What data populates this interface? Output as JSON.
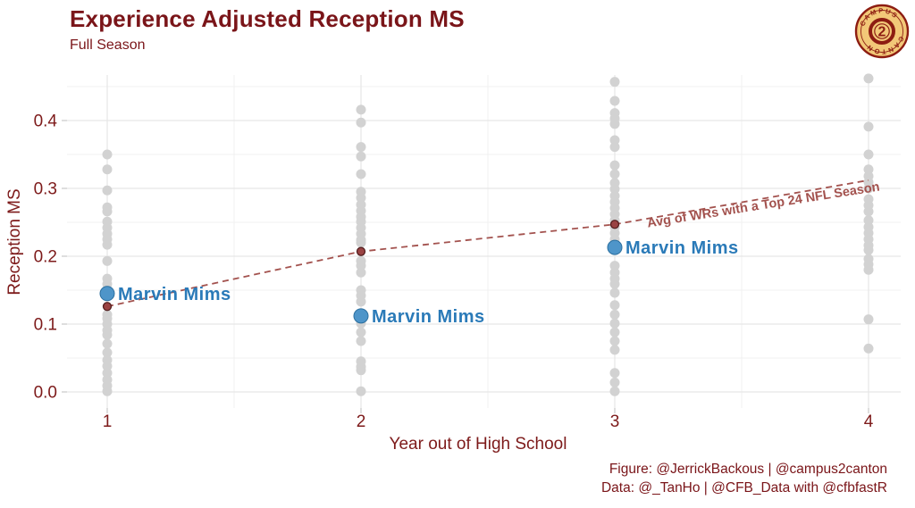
{
  "title": "Experience Adjusted Reception MS",
  "subtitle": "Full Season",
  "footer": {
    "line1": "Figure: @JerrickBackous | @campus2canton",
    "line2": "Data: @_TanHo | @CFB_Data with @cfbfastR"
  },
  "logo": {
    "top_arc_text": "CAMPUS",
    "bottom_arc_text": "CANTON",
    "center_digit": "2",
    "gold": "#F2C878",
    "maroon": "#8D1D12"
  },
  "colors": {
    "maroon_text": "#7A1519",
    "axis_label": "#7D1A1A",
    "gray_dot": "#D2D2D2",
    "blue_dot_fill": "#4E95C9",
    "blue_dot_stroke": "#2B6F9F",
    "blue_label": "#2A7AB8",
    "red_dot_fill": "#9A4343",
    "red_dot_stroke": "#542020",
    "trend_line": "#A3524E",
    "grid_major": "#E7E7E7",
    "grid_minor": "#F0F0F0",
    "tick": "#CBCBCB"
  },
  "chart_data": {
    "type": "scatter",
    "title": "Experience Adjusted Reception MS",
    "subtitle": "Full Season",
    "xlabel": "Year out of High School",
    "ylabel": "Reception MS",
    "xlim": [
      0.85,
      4.15
    ],
    "ylim": [
      -0.023,
      0.466
    ],
    "grid": "major and minor gridlines, light gray, no axis lines",
    "legend_position": "none",
    "x_ticks": [
      {
        "label": "1",
        "v": 1
      },
      {
        "label": "2",
        "v": 2
      },
      {
        "label": "3",
        "v": 3
      },
      {
        "label": "4",
        "v": 4
      }
    ],
    "y_ticks": [
      {
        "label": "0.0",
        "v": 0.0
      },
      {
        "label": "0.1",
        "v": 0.1
      },
      {
        "label": "0.2",
        "v": 0.2
      },
      {
        "label": "0.3",
        "v": 0.3
      },
      {
        "label": "0.4",
        "v": 0.4
      }
    ],
    "y_minor": [
      0.05,
      0.15,
      0.25,
      0.35,
      0.45
    ],
    "x_minor": [
      1.5,
      2.5,
      3.5
    ],
    "series": [
      {
        "name": "all-wrs-strip",
        "type": "strip",
        "color": "#D2D2D2",
        "by_year": {
          "1": [
            0.35,
            0.328,
            0.297,
            0.272,
            0.266,
            0.251,
            0.242,
            0.233,
            0.225,
            0.217,
            0.193,
            0.167,
            0.159,
            0.114,
            0.108,
            0.1,
            0.091,
            0.084,
            0.071,
            0.058,
            0.047,
            0.038,
            0.028,
            0.018,
            0.009,
            0.001
          ],
          "2": [
            0.416,
            0.397,
            0.361,
            0.347,
            0.321,
            0.295,
            0.286,
            0.276,
            0.267,
            0.258,
            0.251,
            0.242,
            0.233,
            0.224,
            0.22,
            0.193,
            0.186,
            0.176,
            0.15,
            0.142,
            0.133,
            0.101,
            0.088,
            0.075,
            0.045,
            0.037,
            0.032,
            0.001
          ],
          "3": [
            0.457,
            0.429,
            0.411,
            0.403,
            0.395,
            0.371,
            0.361,
            0.334,
            0.321,
            0.308,
            0.299,
            0.289,
            0.28,
            0.271,
            0.262,
            0.253,
            0.243,
            0.234,
            0.225,
            0.186,
            0.176,
            0.167,
            0.159,
            0.146,
            0.128,
            0.114,
            0.101,
            0.088,
            0.075,
            0.062,
            0.028,
            0.014,
            0.001
          ],
          "4": [
            0.462,
            0.391,
            0.35,
            0.328,
            0.318,
            0.309,
            0.3,
            0.284,
            0.275,
            0.266,
            0.253,
            0.243,
            0.234,
            0.225,
            0.216,
            0.209,
            0.196,
            0.188,
            0.18,
            0.107,
            0.064
          ]
        }
      },
      {
        "name": "marvin-mims",
        "type": "labeled-points",
        "label": "Marvin Mims",
        "color": "#4E95C9",
        "points": [
          {
            "x": 1,
            "y": 0.145
          },
          {
            "x": 2,
            "y": 0.112
          },
          {
            "x": 3,
            "y": 0.213
          }
        ]
      },
      {
        "name": "avg-top24-wrs",
        "type": "dashed-line-with-points",
        "label": "Avg of WRs with a Top 24 NFL Season",
        "color": "#A3524E",
        "line_points": [
          {
            "x": 1,
            "y": 0.126
          },
          {
            "x": 2,
            "y": 0.207
          },
          {
            "x": 3,
            "y": 0.247
          },
          {
            "x": 4,
            "y": 0.312
          }
        ],
        "marker_points": [
          {
            "x": 1,
            "y": 0.126
          },
          {
            "x": 2,
            "y": 0.207
          },
          {
            "x": 3,
            "y": 0.247
          }
        ]
      }
    ]
  }
}
